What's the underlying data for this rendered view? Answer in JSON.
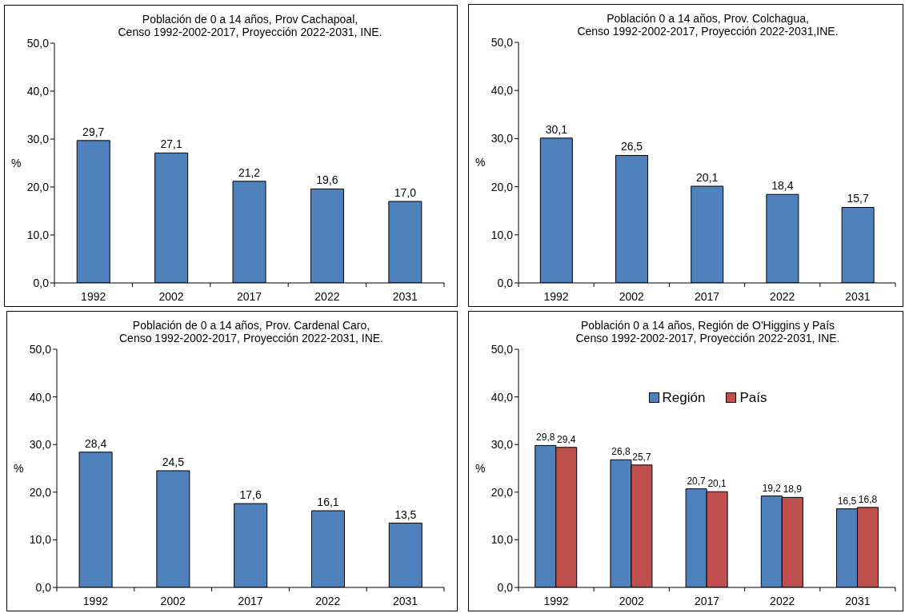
{
  "chart_data": [
    {
      "type": "bar",
      "title": "Población de 0 a 14 años, Prov Cachapoal,",
      "subtitle": "Censo 1992-2002-2017, Proyección 2022-2031, INE.",
      "ylabel": "%",
      "categories": [
        "1992",
        "2002",
        "2017",
        "2022",
        "2031"
      ],
      "series": [
        {
          "color": "#4f81bd",
          "values": [
            29.7,
            27.1,
            21.2,
            19.6,
            17.0
          ],
          "value_labels": [
            "29,7",
            "27,1",
            "21,2",
            "19,6",
            "17,0"
          ]
        }
      ],
      "ylim": [
        0,
        50
      ],
      "yticks": [
        {
          "value": 0,
          "label": "0,0"
        },
        {
          "value": 10,
          "label": "10,0"
        },
        {
          "value": 20,
          "label": "20,0"
        },
        {
          "value": 30,
          "label": "30,0"
        },
        {
          "value": 40,
          "label": "40,0"
        },
        {
          "value": 50,
          "label": "50,0"
        }
      ]
    },
    {
      "type": "bar",
      "title": "Población 0 a 14 años, Prov. Colchagua,",
      "subtitle": "Censo 1992-2002-2017, Proyección 2022-2031,INE.",
      "ylabel": "%",
      "categories": [
        "1992",
        "2002",
        "2017",
        "2022",
        "2031"
      ],
      "series": [
        {
          "color": "#4f81bd",
          "values": [
            30.1,
            26.5,
            20.1,
            18.4,
            15.7
          ],
          "value_labels": [
            "30,1",
            "26,5",
            "20,1",
            "18,4",
            "15,7"
          ]
        }
      ],
      "ylim": [
        0,
        50
      ],
      "yticks": [
        {
          "value": 0,
          "label": "0,0"
        },
        {
          "value": 10,
          "label": "10,0"
        },
        {
          "value": 20,
          "label": "20,0"
        },
        {
          "value": 30,
          "label": "30,0"
        },
        {
          "value": 40,
          "label": "40,0"
        },
        {
          "value": 50,
          "label": "50,0"
        }
      ]
    },
    {
      "type": "bar",
      "title": "Población de 0 a 14 años, Prov. Cardenal Caro,",
      "subtitle": "Censo 1992-2002-2017, Proyección 2022-2031, INE.",
      "ylabel": "%",
      "categories": [
        "1992",
        "2002",
        "2017",
        "2022",
        "2031"
      ],
      "series": [
        {
          "color": "#4f81bd",
          "values": [
            28.4,
            24.5,
            17.6,
            16.1,
            13.5
          ],
          "value_labels": [
            "28,4",
            "24,5",
            "17,6",
            "16,1",
            "13,5"
          ]
        }
      ],
      "ylim": [
        0,
        50
      ],
      "yticks": [
        {
          "value": 0,
          "label": "0,0"
        },
        {
          "value": 10,
          "label": "10,0"
        },
        {
          "value": 20,
          "label": "20,0"
        },
        {
          "value": 30,
          "label": "30,0"
        },
        {
          "value": 40,
          "label": "40,0"
        },
        {
          "value": 50,
          "label": "50,0"
        }
      ]
    },
    {
      "type": "bar",
      "title": "Población 0 a 14 años, Región de O'Higgins y País",
      "subtitle": "Censo 1992-2002-2017, Proyección 2022-2031, INE.",
      "ylabel": "%",
      "categories": [
        "1992",
        "2002",
        "2017",
        "2022",
        "2031"
      ],
      "series": [
        {
          "name": "Región",
          "color": "#4f81bd",
          "values": [
            29.8,
            26.8,
            20.7,
            19.2,
            16.5
          ],
          "value_labels": [
            "29,8",
            "26,8",
            "20,7",
            "19,2",
            "16,5"
          ]
        },
        {
          "name": "País",
          "color": "#c0504d",
          "values": [
            29.4,
            25.7,
            20.1,
            18.9,
            16.8
          ],
          "value_labels": [
            "29,4",
            "25,7",
            "20,1",
            "18,9",
            "16,8"
          ]
        }
      ],
      "ylim": [
        0,
        50
      ],
      "yticks": [
        {
          "value": 0,
          "label": "0,0"
        },
        {
          "value": 10,
          "label": "10,0"
        },
        {
          "value": 20,
          "label": "20,0"
        },
        {
          "value": 30,
          "label": "30,0"
        },
        {
          "value": 40,
          "label": "40,0"
        },
        {
          "value": 50,
          "label": "50,0"
        }
      ],
      "legend": "top"
    }
  ]
}
